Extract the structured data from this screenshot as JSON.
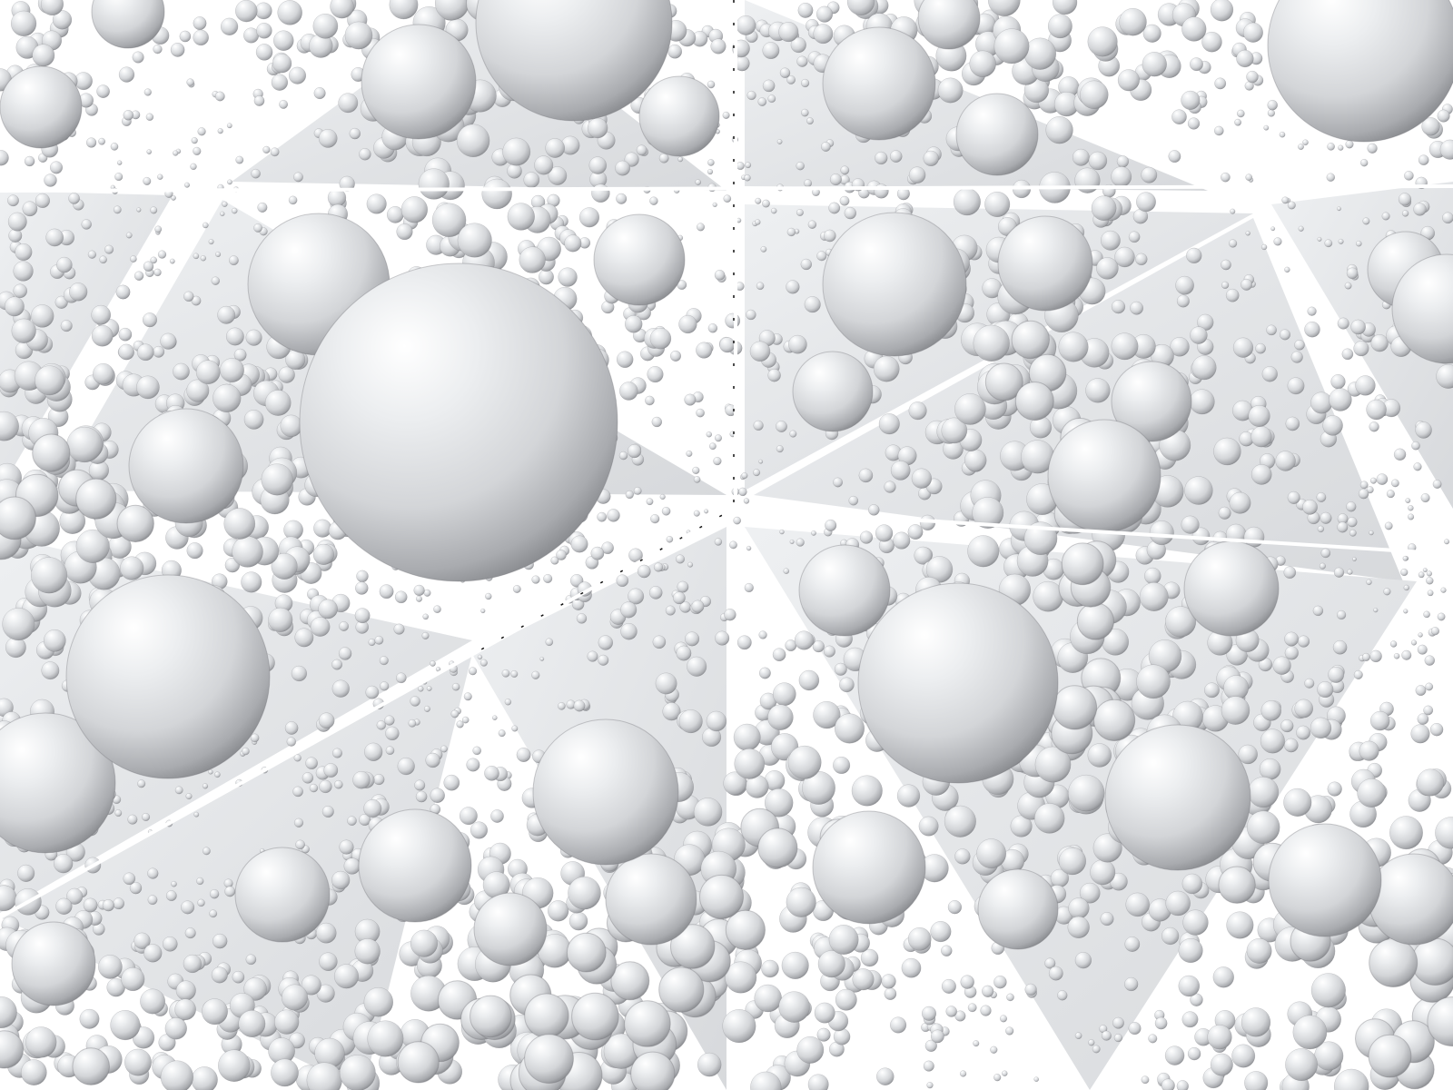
{
  "image": {
    "subject": "",
    "colors": {
      "background": "#ffffff",
      "sphere_highlight": "#ffffff",
      "sphere_light": "#e9eaed",
      "sphere_mid": "#c8cace",
      "sphere_shadow": "#8a8c90",
      "sphere_edge": "#6f7175",
      "seam": "#111111"
    }
  }
}
